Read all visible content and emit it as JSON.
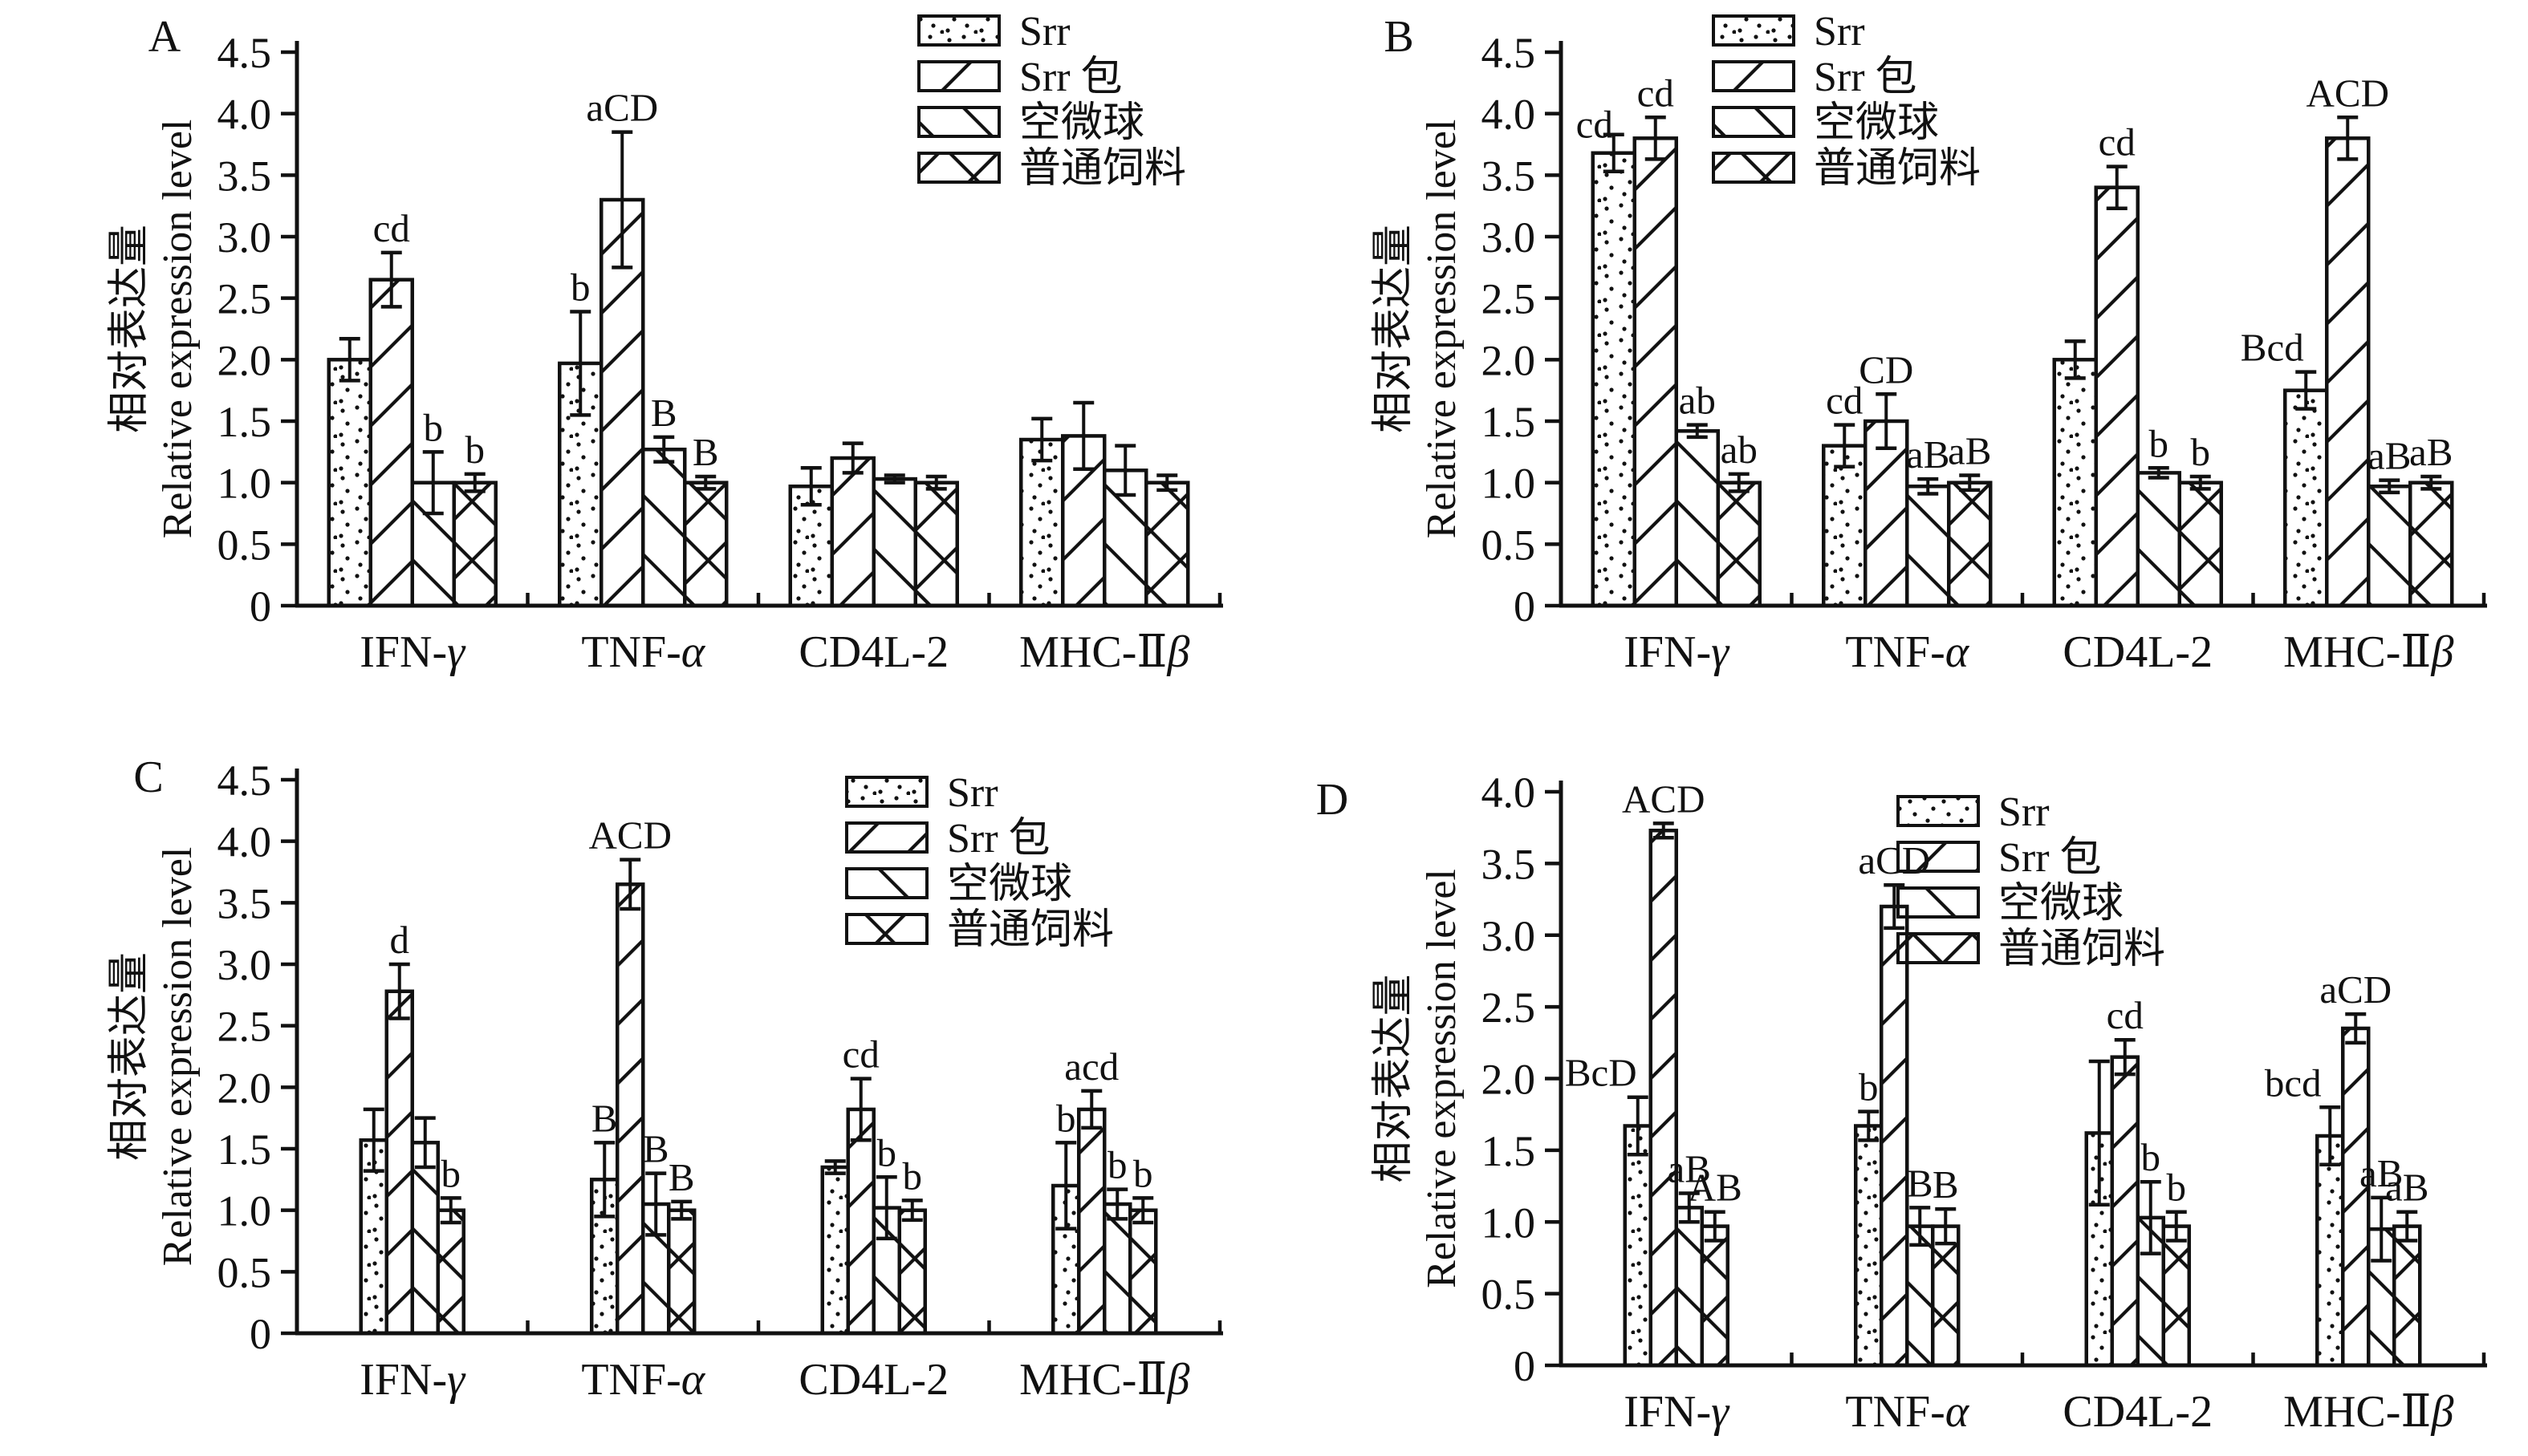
{
  "figure": {
    "background": "#ffffff",
    "text_color": "#111111",
    "panel_order": [
      "A",
      "B",
      "C",
      "D"
    ]
  },
  "chart_data": [
    {
      "panel": "A",
      "type": "bar",
      "ylabel_cn": "相对表达量",
      "ylabel_en": "Relative expression level",
      "ylim": [
        0,
        4.5
      ],
      "ytick_step": 0.5,
      "grid": "off",
      "legend_position": "top-right-inside",
      "categories": [
        "IFN-γ",
        "TNF-α",
        "CD4L-2",
        "MHC-Ⅱβ"
      ],
      "series": [
        {
          "name": "Srr",
          "hatch": "dots",
          "values": [
            2.0,
            1.97,
            0.97,
            1.35
          ],
          "errors": [
            0.17,
            0.42,
            0.15,
            0.17
          ],
          "sig": [
            "",
            "b",
            "",
            ""
          ]
        },
        {
          "name": "Srr 包",
          "hatch": "fdiag",
          "values": [
            2.65,
            3.3,
            1.2,
            1.38
          ],
          "errors": [
            0.22,
            0.55,
            0.12,
            0.27
          ],
          "sig": [
            "cd",
            "aCD",
            "",
            ""
          ]
        },
        {
          "name": "空微球",
          "hatch": "bdiag",
          "values": [
            1.0,
            1.27,
            1.03,
            1.1
          ],
          "errors": [
            0.25,
            0.1,
            0.03,
            0.2
          ],
          "sig": [
            "b",
            "B",
            "",
            ""
          ]
        },
        {
          "name": "普通饲料",
          "hatch": "cross",
          "values": [
            1.0,
            1.0,
            1.0,
            1.0
          ],
          "errors": [
            0.07,
            0.05,
            0.05,
            0.06
          ],
          "sig": [
            "b",
            "B",
            "",
            ""
          ]
        }
      ]
    },
    {
      "panel": "B",
      "type": "bar",
      "ylabel_cn": "相对表达量",
      "ylabel_en": "Relative expression level",
      "ylim": [
        0,
        4.5
      ],
      "ytick_step": 0.5,
      "grid": "off",
      "legend_position": "top-inside",
      "categories": [
        "IFN-γ",
        "TNF-α",
        "CD4L-2",
        "MHC-Ⅱβ"
      ],
      "series": [
        {
          "name": "Srr",
          "hatch": "dots",
          "values": [
            3.68,
            1.3,
            2.0,
            1.75
          ],
          "errors": [
            0.15,
            0.17,
            0.15,
            0.15
          ],
          "sig": [
            "cd",
            "cd",
            "",
            "Bcd"
          ]
        },
        {
          "name": "Srr 包",
          "hatch": "fdiag",
          "values": [
            3.8,
            1.5,
            3.4,
            3.8
          ],
          "errors": [
            0.17,
            0.22,
            0.17,
            0.17
          ],
          "sig": [
            "cd",
            "CD",
            "cd",
            "ACD"
          ]
        },
        {
          "name": "空微球",
          "hatch": "bdiag",
          "values": [
            1.42,
            0.97,
            1.08,
            0.97
          ],
          "errors": [
            0.05,
            0.06,
            0.04,
            0.05
          ],
          "sig": [
            "ab",
            "aB",
            "b",
            "aB"
          ]
        },
        {
          "name": "普通饲料",
          "hatch": "cross",
          "values": [
            1.0,
            1.0,
            1.0,
            1.0
          ],
          "errors": [
            0.07,
            0.06,
            0.05,
            0.05
          ],
          "sig": [
            "ab",
            "aB",
            "b",
            "aB"
          ]
        }
      ]
    },
    {
      "panel": "C",
      "type": "bar",
      "ylabel_cn": "相对表达量",
      "ylabel_en": "Relative expression level",
      "ylim": [
        0,
        4.5
      ],
      "ytick_step": 0.5,
      "grid": "off",
      "legend_position": "top-right-inside",
      "categories": [
        "IFN-γ",
        "TNF-α",
        "CD4L-2",
        "MHC-Ⅱβ"
      ],
      "series": [
        {
          "name": "Srr",
          "hatch": "dots",
          "values": [
            1.57,
            1.25,
            1.35,
            1.2
          ],
          "errors": [
            0.25,
            0.3,
            0.05,
            0.35
          ],
          "sig": [
            "",
            "B",
            "",
            "b"
          ]
        },
        {
          "name": "Srr 包",
          "hatch": "fdiag",
          "values": [
            2.78,
            3.65,
            1.82,
            1.82
          ],
          "errors": [
            0.22,
            0.2,
            0.25,
            0.15
          ],
          "sig": [
            "d",
            "ACD",
            "cd",
            "acd"
          ]
        },
        {
          "name": "空微球",
          "hatch": "bdiag",
          "values": [
            1.55,
            1.05,
            1.02,
            1.05
          ],
          "errors": [
            0.2,
            0.25,
            0.25,
            0.12
          ],
          "sig": [
            "",
            "B",
            "b",
            "b"
          ]
        },
        {
          "name": "普通饲料",
          "hatch": "cross",
          "values": [
            1.0,
            1.0,
            1.0,
            1.0
          ],
          "errors": [
            0.1,
            0.07,
            0.08,
            0.1
          ],
          "sig": [
            "b",
            "B",
            "b",
            "b"
          ]
        }
      ]
    },
    {
      "panel": "D",
      "type": "bar",
      "ylabel_cn": "相对表达量",
      "ylabel_en": "Relative expression level",
      "ylim": [
        0,
        4.0
      ],
      "ytick_step": 0.5,
      "grid": "off",
      "legend_position": "top-inside",
      "categories": [
        "IFN-γ",
        "TNF-α",
        "CD4L-2",
        "MHC-Ⅱβ"
      ],
      "series": [
        {
          "name": "Srr",
          "hatch": "dots",
          "values": [
            1.67,
            1.67,
            1.62,
            1.6
          ],
          "errors": [
            0.2,
            0.1,
            0.5,
            0.2
          ],
          "sig": [
            "BcD",
            "b",
            "",
            "bcd"
          ]
        },
        {
          "name": "Srr 包",
          "hatch": "fdiag",
          "values": [
            3.73,
            3.2,
            2.15,
            2.35
          ],
          "errors": [
            0.05,
            0.15,
            0.12,
            0.1
          ],
          "sig": [
            "ACD",
            "aCD",
            "cd",
            "aCD"
          ]
        },
        {
          "name": "空微球",
          "hatch": "bdiag",
          "values": [
            1.1,
            0.97,
            1.03,
            0.95
          ],
          "errors": [
            0.1,
            0.13,
            0.25,
            0.22
          ],
          "sig": [
            "aB",
            "B",
            "b",
            "aB"
          ]
        },
        {
          "name": "普通饲料",
          "hatch": "cross",
          "values": [
            0.97,
            0.97,
            0.97,
            0.97
          ],
          "errors": [
            0.1,
            0.12,
            0.1,
            0.1
          ],
          "sig": [
            "AB",
            "B",
            "b",
            "aB"
          ]
        }
      ]
    }
  ]
}
